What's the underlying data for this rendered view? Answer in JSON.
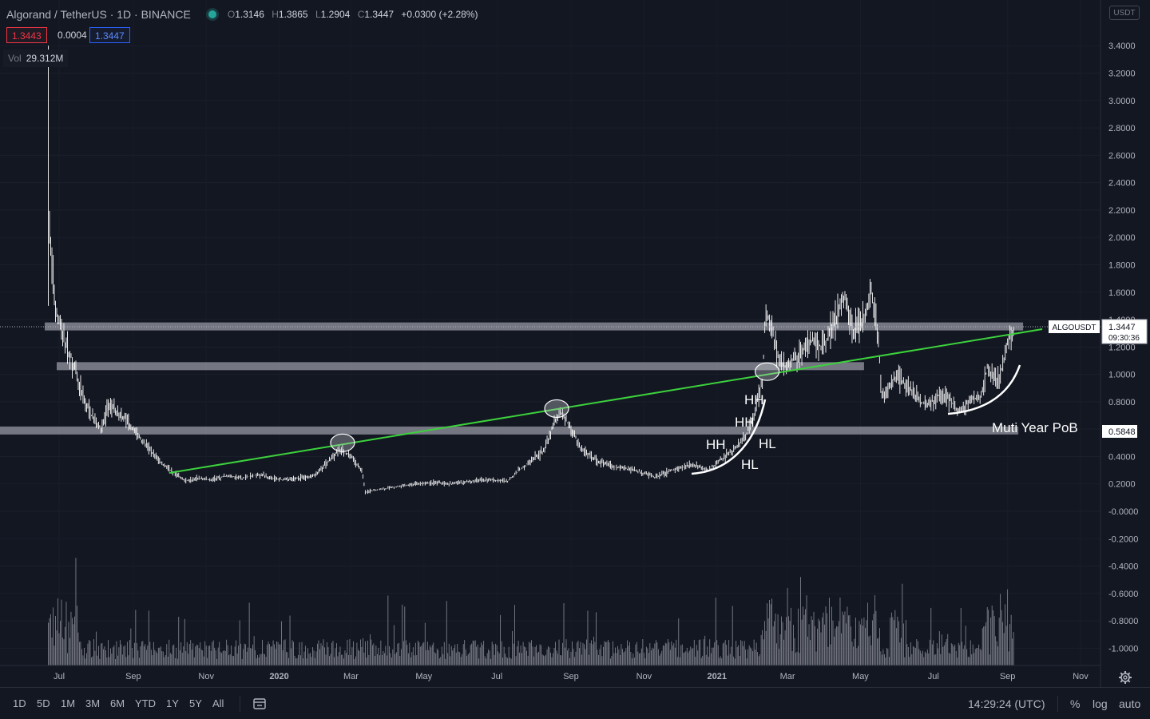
{
  "header": {
    "symbol": "Algorand / TetherUS · 1D · BINANCE",
    "open_key": "O",
    "open": "1.3146",
    "high_key": "H",
    "high": "1.3865",
    "low_key": "L",
    "low": "1.2904",
    "close_key": "C",
    "close": "1.3447",
    "change": "+0.0300 (+2.28%)",
    "bid": "1.3443",
    "spread": "0.0004",
    "ask": "1.3447",
    "vol_label": "Vol",
    "vol_value": "29.312M"
  },
  "currency_badge": "USDT",
  "bottom_bar": {
    "ranges": [
      "1D",
      "5D",
      "1M",
      "3M",
      "6M",
      "YTD",
      "1Y",
      "5Y",
      "All"
    ],
    "time": "14:29:24 (UTC)",
    "percent": "%",
    "log": "log",
    "auto": "auto"
  },
  "colors": {
    "background": "#131722",
    "candles": "#ffffff",
    "trendline": "#3cd23c",
    "zones": "#9598a1",
    "text": "#d1d4dc"
  },
  "chart_data": {
    "type": "bar",
    "symbol": "ALGOUSDT",
    "last_price": "1.3447",
    "countdown": "09:30:36",
    "level_label": "0.5848",
    "y_ticks": [
      "3.4000",
      "3.2000",
      "3.0000",
      "2.8000",
      "2.6000",
      "2.4000",
      "2.2000",
      "2.0000",
      "1.8000",
      "1.6000",
      "1.4000",
      "1.2000",
      "1.0000",
      "0.8000",
      "0.6000",
      "0.4000",
      "0.2000",
      "-0.0000",
      "-0.2000",
      "-0.4000",
      "-0.6000",
      "-0.8000",
      "-1.0000"
    ],
    "x_ticks": [
      "Jul",
      "Sep",
      "Nov",
      "2020",
      "Mar",
      "May",
      "Jul",
      "Sep",
      "Nov",
      "2021",
      "Mar",
      "May",
      "Jul",
      "Sep",
      "Nov"
    ],
    "ylim": [
      -1.1,
      3.6
    ],
    "price_series": [
      [
        "2019-06-22",
        2.2
      ],
      [
        "2019-06-24",
        1.95
      ],
      [
        "2019-06-28",
        1.5
      ],
      [
        "2019-07-05",
        1.25
      ],
      [
        "2019-07-12",
        1.1
      ],
      [
        "2019-07-20",
        0.85
      ],
      [
        "2019-07-28",
        0.7
      ],
      [
        "2019-08-05",
        0.6
      ],
      [
        "2019-08-12",
        0.78
      ],
      [
        "2019-08-20",
        0.72
      ],
      [
        "2019-08-28",
        0.65
      ],
      [
        "2019-09-05",
        0.55
      ],
      [
        "2019-09-15",
        0.45
      ],
      [
        "2019-09-25",
        0.35
      ],
      [
        "2019-10-05",
        0.28
      ],
      [
        "2019-10-15",
        0.22
      ],
      [
        "2019-10-25",
        0.24
      ],
      [
        "2019-11-05",
        0.23
      ],
      [
        "2019-11-20",
        0.26
      ],
      [
        "2019-12-01",
        0.24
      ],
      [
        "2019-12-15",
        0.27
      ],
      [
        "2020-01-01",
        0.23
      ],
      [
        "2020-01-15",
        0.24
      ],
      [
        "2020-01-31",
        0.26
      ],
      [
        "2020-02-10",
        0.36
      ],
      [
        "2020-02-20",
        0.45
      ],
      [
        "2020-03-01",
        0.4
      ],
      [
        "2020-03-10",
        0.3
      ],
      [
        "2020-03-13",
        0.14
      ],
      [
        "2020-03-25",
        0.16
      ],
      [
        "2020-04-10",
        0.18
      ],
      [
        "2020-04-25",
        0.2
      ],
      [
        "2020-05-10",
        0.21
      ],
      [
        "2020-05-25",
        0.2
      ],
      [
        "2020-06-10",
        0.22
      ],
      [
        "2020-06-25",
        0.23
      ],
      [
        "2020-07-10",
        0.22
      ],
      [
        "2020-07-20",
        0.3
      ],
      [
        "2020-07-31",
        0.38
      ],
      [
        "2020-08-10",
        0.45
      ],
      [
        "2020-08-18",
        0.65
      ],
      [
        "2020-08-24",
        0.72
      ],
      [
        "2020-09-01",
        0.6
      ],
      [
        "2020-09-10",
        0.45
      ],
      [
        "2020-09-25",
        0.36
      ],
      [
        "2020-10-10",
        0.32
      ],
      [
        "2020-10-25",
        0.3
      ],
      [
        "2020-11-10",
        0.25
      ],
      [
        "2020-11-25",
        0.3
      ],
      [
        "2020-12-10",
        0.34
      ],
      [
        "2020-12-25",
        0.3
      ],
      [
        "2021-01-05",
        0.38
      ],
      [
        "2021-01-15",
        0.45
      ],
      [
        "2021-01-25",
        0.55
      ],
      [
        "2021-02-01",
        0.7
      ],
      [
        "2021-02-08",
        0.95
      ],
      [
        "2021-02-11",
        1.5
      ],
      [
        "2021-02-15",
        1.35
      ],
      [
        "2021-02-22",
        1.1
      ],
      [
        "2021-03-01",
        1.05
      ],
      [
        "2021-03-10",
        1.15
      ],
      [
        "2021-03-20",
        1.25
      ],
      [
        "2021-03-31",
        1.2
      ],
      [
        "2021-04-10",
        1.4
      ],
      [
        "2021-04-18",
        1.6
      ],
      [
        "2021-04-25",
        1.3
      ],
      [
        "2021-05-05",
        1.45
      ],
      [
        "2021-05-10",
        1.6
      ],
      [
        "2021-05-15",
        1.35
      ],
      [
        "2021-05-19",
        0.85
      ],
      [
        "2021-05-25",
        0.9
      ],
      [
        "2021-06-01",
        1.0
      ],
      [
        "2021-06-10",
        0.9
      ],
      [
        "2021-06-20",
        0.8
      ],
      [
        "2021-06-28",
        0.78
      ],
      [
        "2021-07-05",
        0.85
      ],
      [
        "2021-07-15",
        0.82
      ],
      [
        "2021-07-21",
        0.72
      ],
      [
        "2021-07-31",
        0.8
      ],
      [
        "2021-08-10",
        0.85
      ],
      [
        "2021-08-15",
        1.05
      ],
      [
        "2021-08-20",
        1.0
      ],
      [
        "2021-08-25",
        0.95
      ],
      [
        "2021-08-31",
        1.2
      ],
      [
        "2021-09-05",
        1.3
      ],
      [
        "2021-09-06",
        1.34
      ]
    ],
    "horizontal_zones": [
      {
        "price": 1.35,
        "from": "2019-06-19",
        "to": "2021-09-14"
      },
      {
        "price": 1.06,
        "from": "2019-06-29",
        "to": "2021-05-04"
      },
      {
        "price": 0.59,
        "from": "2019-04-01",
        "to": "2021-09-10"
      }
    ],
    "trendline": {
      "from": [
        "2019-10-01",
        0.28
      ],
      "to": [
        "2021-09-30",
        1.33
      ]
    },
    "circled_points": [
      [
        "2020-02-23",
        0.5
      ],
      [
        "2020-08-20",
        0.75
      ],
      [
        "2021-02-12",
        1.02
      ]
    ],
    "annotations": [
      "HH",
      "HH",
      "HH",
      "HL",
      "HL",
      "Muti Year PoB"
    ]
  }
}
